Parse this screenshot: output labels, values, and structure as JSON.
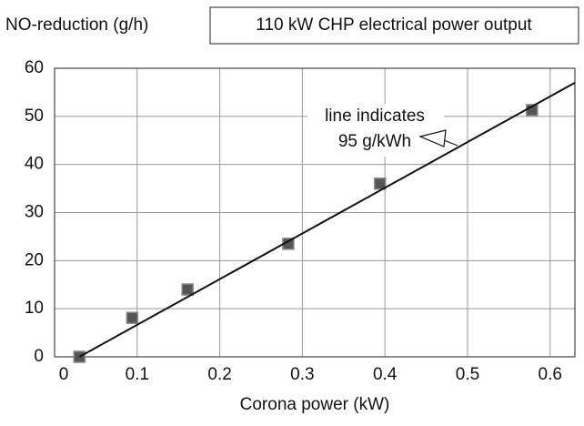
{
  "chart_data": {
    "type": "scatter",
    "y_label": "NO-reduction (g/h)",
    "x_label": "Corona power (kW)",
    "box_label": "110 kW CHP electrical power output",
    "annotation": [
      "line indicates",
      "95 g/kWh"
    ],
    "xlim": [
      0,
      0.63
    ],
    "ylim": [
      0,
      60
    ],
    "xticks": [
      0,
      0.1,
      0.2,
      0.3,
      0.4,
      0.5,
      0.6
    ],
    "yticks": [
      0,
      10,
      20,
      30,
      40,
      50,
      60
    ],
    "grid": true,
    "series": [
      {
        "type": "scatter",
        "color": "#555555",
        "x": [
          0.03,
          0.094,
          0.161,
          0.283,
          0.394,
          0.578
        ],
        "values": [
          0,
          8.1,
          14,
          23.5,
          36,
          51.3
        ]
      },
      {
        "type": "line",
        "color": "#111111",
        "x": [
          0.03,
          0.63
        ],
        "values": [
          0,
          57
        ]
      }
    ]
  }
}
